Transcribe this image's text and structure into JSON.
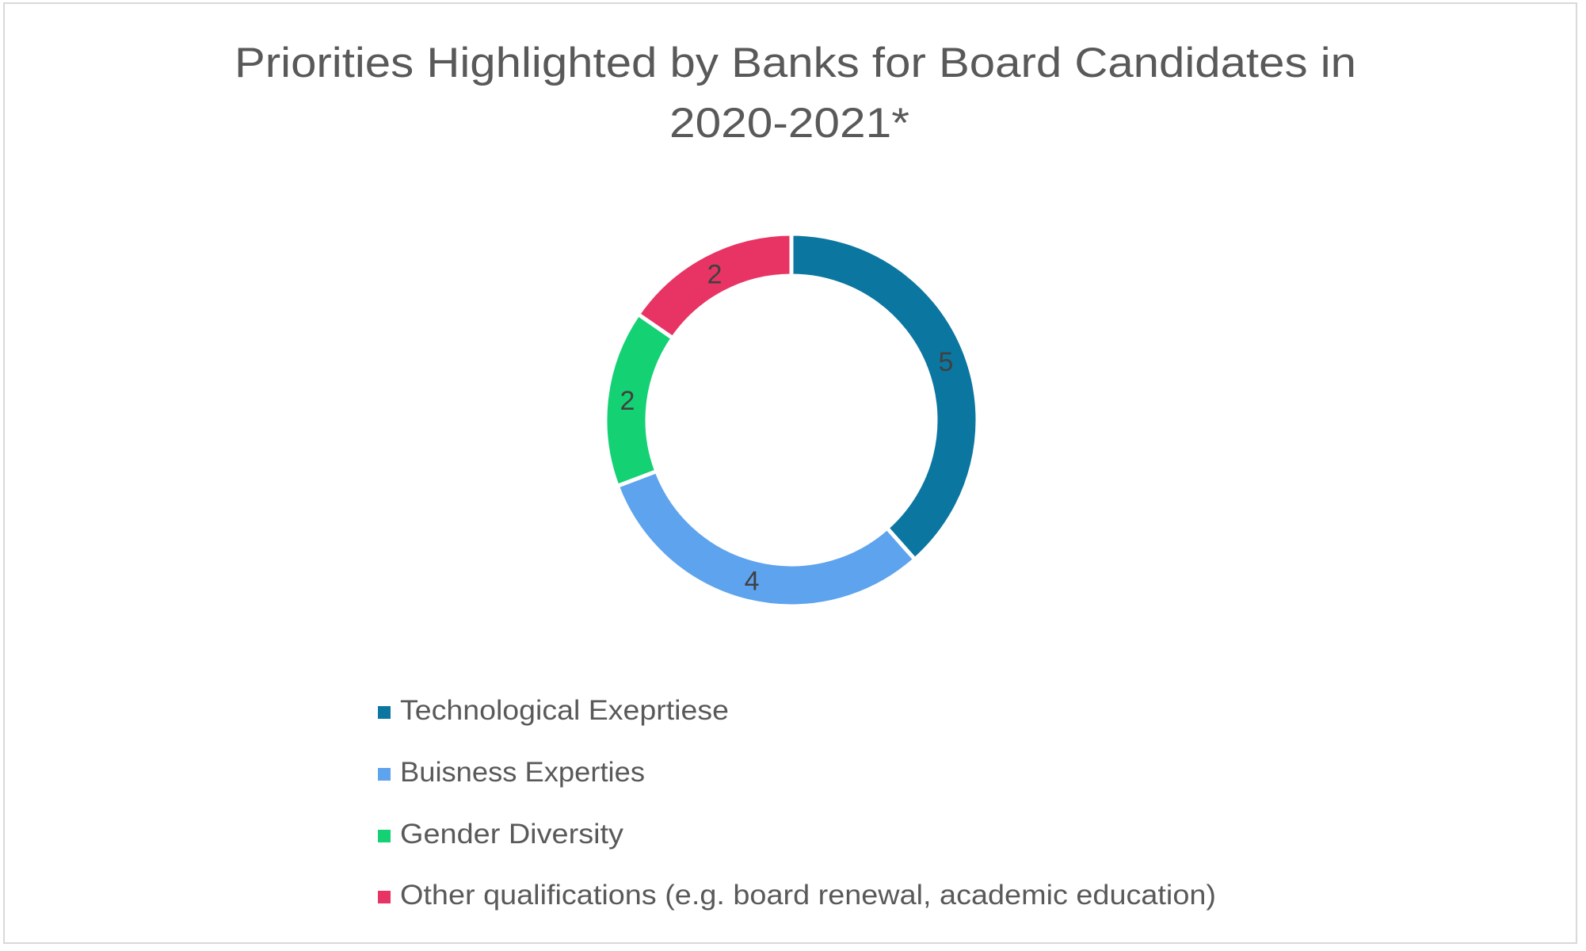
{
  "chart_data": {
    "type": "pie",
    "subtype": "doughnut",
    "title": "Priorities Highlighted by Banks for Board Candidates in 2020-2021*",
    "title_lines": [
      "Priorities Highlighted by Banks for Board Candidates in",
      "2020-2021*"
    ],
    "categories": [
      "Technological Exeprtiese",
      "Buisness Experties",
      "Gender Diversity",
      "Other qualifications (e.g. board renewal, academic education)"
    ],
    "values": [
      5,
      4,
      2,
      2
    ],
    "colors": [
      "#0b76a0",
      "#5ea3ee",
      "#14d173",
      "#e83464"
    ],
    "data_labels": [
      "5",
      "4",
      "2",
      "2"
    ],
    "legend_position": "bottom",
    "grid": false
  },
  "style": {
    "title_color": "#595959",
    "label_color": "#404040",
    "legend_text_color": "#595959",
    "border_color": "#d9d9d9"
  }
}
